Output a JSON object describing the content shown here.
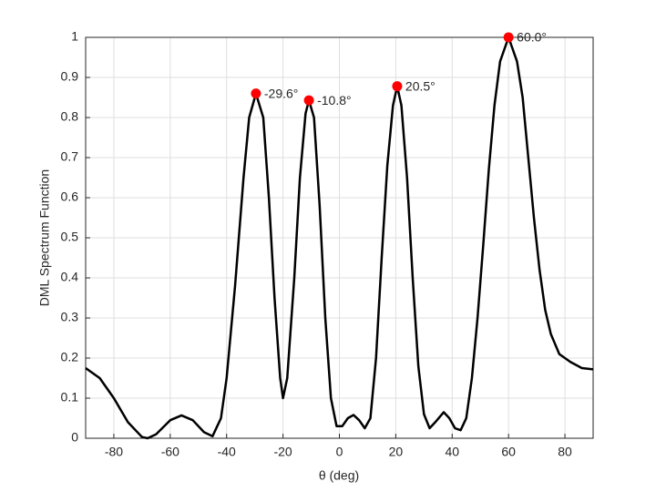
{
  "chart_data": {
    "type": "line",
    "xlabel": "θ (deg)",
    "ylabel": "DML Spectrum Function",
    "x": [
      -90,
      -85,
      -80,
      -75,
      -70,
      -68,
      -65,
      -60,
      -56,
      -52,
      -48,
      -45,
      -42,
      -40,
      -37,
      -34,
      -32,
      -29.6,
      -27,
      -25,
      -23,
      -21,
      -20,
      -18.5,
      -16,
      -14,
      -12,
      -10.8,
      -9,
      -7,
      -5,
      -3,
      -1,
      1,
      3,
      5,
      7,
      9,
      11,
      13,
      15,
      17,
      19,
      20.5,
      22,
      24,
      26,
      28,
      30,
      32,
      34,
      37,
      39,
      41,
      43,
      45,
      47,
      49,
      51,
      53,
      55,
      57,
      60,
      63,
      65,
      67,
      69,
      71,
      73,
      75,
      78,
      82,
      86,
      90
    ],
    "series": [
      {
        "color": "#000000",
        "values": [
          0.175,
          0.15,
          0.1,
          0.04,
          0.003,
          0.0,
          0.01,
          0.045,
          0.057,
          0.045,
          0.015,
          0.005,
          0.05,
          0.15,
          0.38,
          0.65,
          0.8,
          0.86,
          0.8,
          0.6,
          0.35,
          0.15,
          0.1,
          0.15,
          0.4,
          0.65,
          0.81,
          0.843,
          0.8,
          0.58,
          0.3,
          0.1,
          0.03,
          0.03,
          0.05,
          0.058,
          0.045,
          0.025,
          0.05,
          0.2,
          0.45,
          0.68,
          0.83,
          0.878,
          0.83,
          0.65,
          0.4,
          0.18,
          0.06,
          0.025,
          0.04,
          0.065,
          0.05,
          0.025,
          0.02,
          0.05,
          0.15,
          0.3,
          0.48,
          0.67,
          0.83,
          0.94,
          1.0,
          0.94,
          0.85,
          0.7,
          0.55,
          0.42,
          0.32,
          0.26,
          0.21,
          0.19,
          0.175,
          0.172
        ]
      }
    ],
    "peaks": {
      "color": "#ff0000",
      "x": [
        -29.6,
        -10.8,
        20.5,
        60.0
      ],
      "values": [
        0.86,
        0.843,
        0.878,
        1.0
      ],
      "labels": [
        "-29.6°",
        "-10.8°",
        "20.5°",
        "60.0°"
      ]
    },
    "xlim": [
      -90,
      90
    ],
    "xticks": [
      -80,
      -60,
      -40,
      -20,
      0,
      20,
      40,
      60,
      80
    ],
    "ylim": [
      0,
      1
    ],
    "yticks": [
      0,
      0.1,
      0.2,
      0.3,
      0.4,
      0.5,
      0.6,
      0.7,
      0.8,
      0.9,
      1
    ],
    "grid": true
  }
}
